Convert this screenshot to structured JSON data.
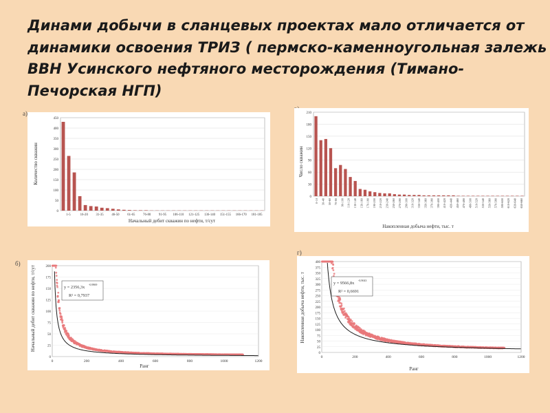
{
  "slide": {
    "title_lines": [
      "Динами добычи в сланцевых проектах мало отличается от",
      "динамики освоения ТРИЗ ( пермско-каменноугольная залежь",
      "ВВН Усинского нефтяного месторождения (Тимано-",
      "Печорская НГП)"
    ]
  },
  "chart_data": [
    {
      "id": "a",
      "panel_label": "а)",
      "type": "bar",
      "ylabel": "Количество скважин",
      "xlabel": "Начальный дебит скважин по нефти, т/сут",
      "ylim": [
        0,
        450
      ],
      "yticks": [
        0,
        50,
        100,
        150,
        200,
        250,
        300,
        350,
        400,
        450
      ],
      "tick_labels": [
        "1-5",
        "16-20",
        "31-35",
        "46-50",
        "61-65",
        "76-80",
        "91-95",
        "106-110",
        "121-125",
        "136-140",
        "151-155",
        "166-170",
        "181-185"
      ],
      "color": "#b85450",
      "values": [
        430,
        265,
        185,
        70,
        27,
        22,
        20,
        14,
        12,
        9,
        6,
        4,
        3,
        2,
        2,
        2,
        1,
        1,
        1,
        1,
        1,
        1,
        1,
        1,
        1,
        1,
        1,
        1,
        1,
        1,
        1,
        1,
        1,
        1,
        1,
        1,
        1
      ]
    },
    {
      "id": "b",
      "panel_label": "в)",
      "type": "bar",
      "ylabel": "Число скважин",
      "xlabel": "Накопленная добыча нефти, тыс. т",
      "ylim": [
        0,
        210
      ],
      "yticks": [
        0,
        30,
        60,
        90,
        120,
        150,
        180,
        210
      ],
      "tick_labels": [
        "0-10",
        "30-40",
        "50-60",
        "70-80",
        "90-100",
        "110-120",
        "130-140",
        "150-160",
        "170-180",
        "190-200",
        "210-220",
        "230-240",
        "250-260",
        "270-280",
        "290-300",
        "310-320",
        "330-340",
        "350-360",
        "370-380",
        "390-400",
        "410-420",
        "430-440",
        "450-460",
        "470-480",
        "490-500",
        "510-520",
        "530-540",
        "550-560",
        "570-580",
        "590-600",
        "610-620",
        "630-640",
        "650-660"
      ],
      "color": "#b85450",
      "values": [
        200,
        140,
        143,
        120,
        70,
        78,
        68,
        48,
        38,
        18,
        16,
        12,
        10,
        8,
        7,
        7,
        5,
        4,
        4,
        3,
        3,
        3,
        2,
        2,
        2,
        2,
        2,
        2,
        2,
        1,
        1,
        1,
        1,
        1,
        1,
        1,
        1,
        1,
        1,
        1,
        1,
        1,
        1
      ]
    },
    {
      "id": "c",
      "panel_label": "б)",
      "type": "scatter",
      "ylabel": "Начальный дебит скважин по нефти, т/сут",
      "xlabel": "Ранг",
      "xlim": [
        0,
        1200
      ],
      "ylim": [
        0,
        200
      ],
      "xticks": [
        0,
        200,
        400,
        600,
        800,
        1000,
        1200
      ],
      "yticks": [
        0,
        25,
        50,
        75,
        100,
        125,
        150,
        175,
        200
      ],
      "fit_equation": "y = 2356,3x",
      "fit_exponent": "-0,9869",
      "r_squared": "R² = 0,7937",
      "fit_a": 2356.3,
      "fit_b": -0.9869,
      "n_points": 1110,
      "scatter_color": "#e8787a",
      "fit_color": "#1a1a1a"
    },
    {
      "id": "d",
      "panel_label": "г)",
      "type": "scatter",
      "ylabel": "Накопленная добыча нефти, тыс. т",
      "xlabel": "Ранг",
      "xlim": [
        0,
        1200
      ],
      "ylim": [
        0,
        400
      ],
      "xticks": [
        0,
        200,
        400,
        600,
        800,
        1000,
        1200
      ],
      "yticks": [
        0,
        25,
        50,
        75,
        100,
        125,
        150,
        175,
        200,
        225,
        250,
        275,
        300,
        325,
        350,
        375,
        400
      ],
      "fit_equation": "y = 9566,8x",
      "fit_exponent": "-0,9043",
      "r_squared": "R² = 0,6691",
      "fit_a": 9566.8,
      "fit_b": -0.9043,
      "n_points": 1100,
      "scatter_color": "#e8787a",
      "fit_color": "#1a1a1a"
    }
  ]
}
